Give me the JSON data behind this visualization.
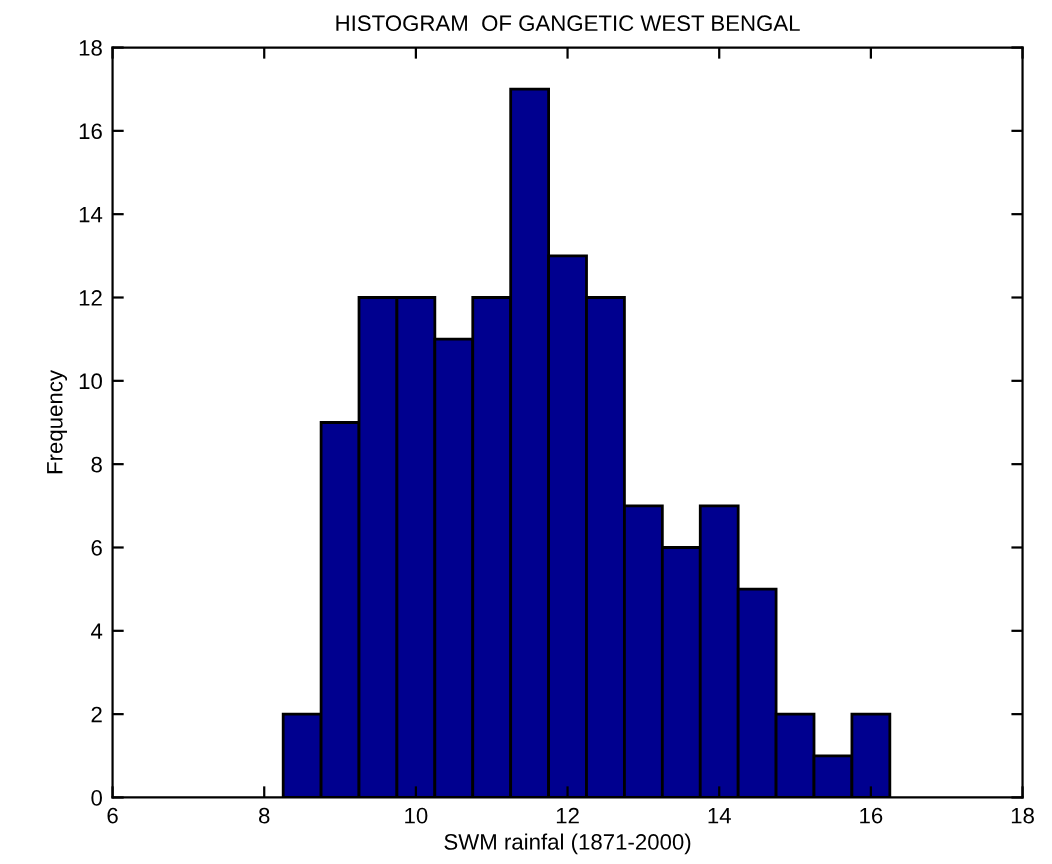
{
  "chart_data": {
    "type": "histogram",
    "title": "HISTOGRAM  OF GANGETIC WEST BENGAL",
    "xlabel": "SWM rainfal (1871-2000)",
    "ylabel": "Frequency",
    "bins": [
      8.25,
      8.75,
      9.25,
      9.75,
      10.25,
      10.75,
      11.25,
      11.75,
      12.25,
      12.75,
      13.25,
      13.75,
      14.25,
      14.75,
      15.25,
      15.75,
      16.25
    ],
    "values": [
      2,
      9,
      12,
      12,
      11,
      12,
      17,
      13,
      12,
      7,
      6,
      7,
      5,
      2,
      1,
      2
    ],
    "color": "#00008f",
    "xlim": [
      6,
      18
    ],
    "xticks": [
      6,
      8,
      10,
      12,
      14,
      16,
      18
    ],
    "ylim": [
      0,
      18
    ],
    "yticks": [
      0,
      2,
      4,
      6,
      8,
      10,
      12,
      14,
      16,
      18
    ],
    "grid": false
  }
}
